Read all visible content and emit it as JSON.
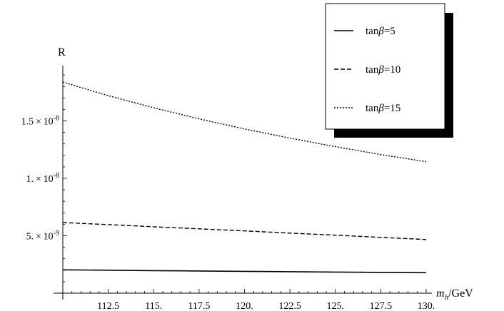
{
  "chart_data": {
    "type": "line",
    "title": "",
    "xlabel": "m_h/GeV",
    "ylabel": "R",
    "xlim": [
      110,
      130
    ],
    "ylim": [
      0,
      2e-08
    ],
    "x_ticks": [
      112.5,
      115,
      117.5,
      120,
      122.5,
      125,
      127.5,
      130
    ],
    "x_tick_labels": [
      "112.5",
      "115.",
      "117.5",
      "120.",
      "122.5",
      "125.",
      "127.5",
      "130."
    ],
    "y_ticks": [
      5e-09,
      1e-08,
      1.5e-08
    ],
    "y_tick_labels": [
      {
        "mantissa": "5.",
        "exp": "-9"
      },
      {
        "mantissa": "1.",
        "exp": "-8"
      },
      {
        "mantissa": "1.5",
        "exp": "-8"
      }
    ],
    "grid": false,
    "legend_position": "top-right",
    "x": [
      110,
      112.5,
      115,
      117.5,
      120,
      122.5,
      125,
      127.5,
      130
    ],
    "series": [
      {
        "name": "tanβ=5",
        "style": "solid",
        "values": [
          2.03e-09,
          2e-09,
          1.96e-09,
          1.93e-09,
          1.9e-09,
          1.87e-09,
          1.84e-09,
          1.81e-09,
          1.78e-09
        ]
      },
      {
        "name": "tanβ=10",
        "style": "dashed",
        "values": [
          6.15e-09,
          5.97e-09,
          5.78e-09,
          5.6e-09,
          5.42e-09,
          5.23e-09,
          5.05e-09,
          4.86e-09,
          4.67e-09
        ]
      },
      {
        "name": "tanβ=15",
        "style": "dotted",
        "values": [
          1.838e-08,
          1.72e-08,
          1.614e-08,
          1.518e-08,
          1.43e-08,
          1.35e-08,
          1.276e-08,
          1.207e-08,
          1.145e-08
        ]
      }
    ]
  }
}
